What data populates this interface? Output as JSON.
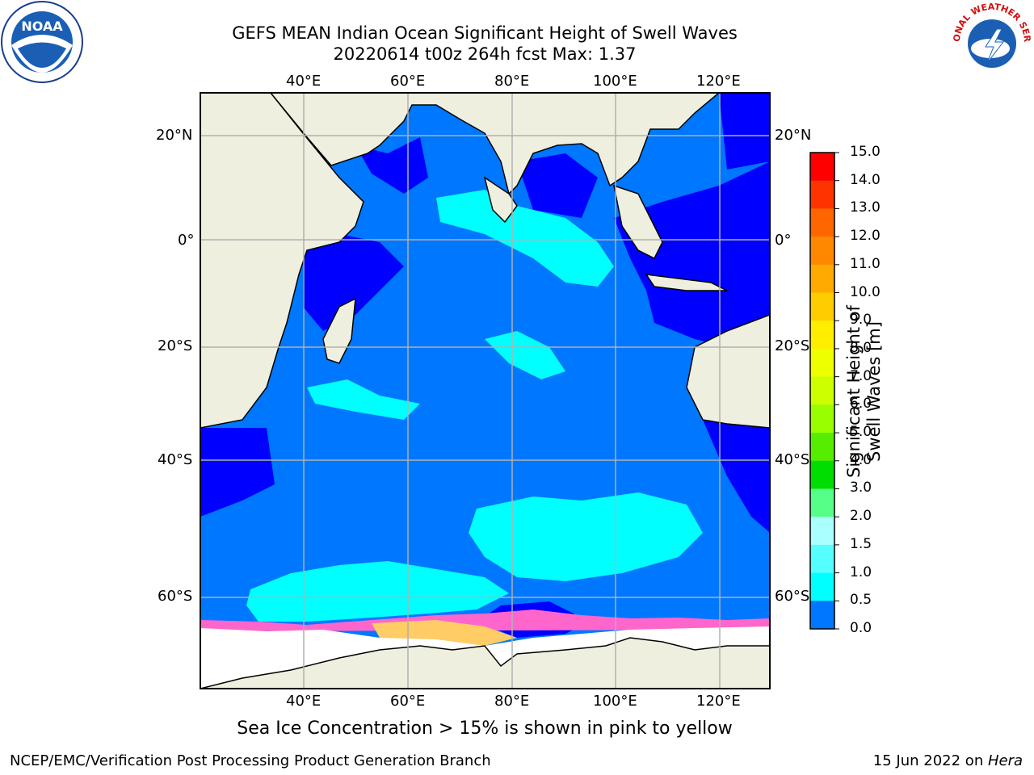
{
  "title": {
    "line1": "GEFS MEAN Indian Ocean Significant Height of Swell Waves",
    "line2": "20220614 t00z 264h fcst   Max: 1.37"
  },
  "map": {
    "lon_labels": [
      "40°E",
      "60°E",
      "80°E",
      "100°E",
      "120°E"
    ],
    "lat_labels": [
      "20°N",
      "0°",
      "20°S",
      "40°S",
      "60°S"
    ],
    "land_color": "#efefdf",
    "ice_color": "#ffffff"
  },
  "colorbar": {
    "title": "Significant Height of Swell Waves [m]",
    "ticks": [
      "15.0",
      "14.0",
      "13.0",
      "12.0",
      "11.0",
      "10.0",
      "9.0",
      "8.0",
      "7.0",
      "6.0",
      "5.0",
      "4.0",
      "3.0",
      "2.0",
      "1.5",
      "1.0",
      "0.5",
      "0.0"
    ],
    "colors": [
      "#ff0000",
      "#ff3300",
      "#ff6600",
      "#ff8800",
      "#ffaa00",
      "#ffcc00",
      "#ffee00",
      "#eeff00",
      "#ccff00",
      "#99ff00",
      "#55ee00",
      "#00dd00",
      "#55ff88",
      "#aaffff",
      "#55ffff",
      "#00ffff",
      "#0077ff",
      "#0000ff"
    ]
  },
  "sea_ice_note": "Sea Ice Concentration > 15% is shown in pink to yellow",
  "credit": "NCEP/EMC/Verification Post Processing Product Generation Branch",
  "date_prefix": "15 Jun 2022 on ",
  "date_host": "Hera",
  "logos": {
    "left": "NOAA",
    "right": "NATIONAL WEATHER SERVICE"
  }
}
